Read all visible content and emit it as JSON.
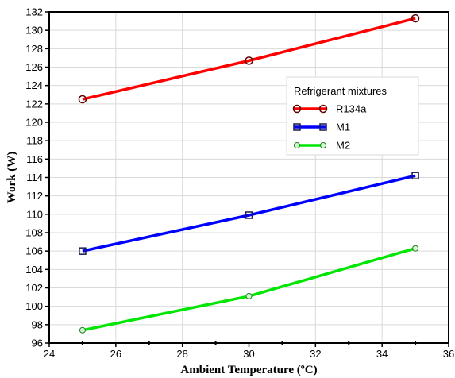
{
  "chart_data": {
    "type": "line",
    "title": "",
    "xlabel": "Ambient Temperature (ºC)",
    "ylabel": "Work  (W)",
    "xlim": [
      24,
      36
    ],
    "ylim": [
      96,
      132
    ],
    "xticks": [
      "24",
      "26",
      "28",
      "30",
      "32",
      "34",
      "36"
    ],
    "yticks": [
      "96",
      "98",
      "100",
      "102",
      "104",
      "106",
      "108",
      "110",
      "112",
      "114",
      "116",
      "118",
      "120",
      "122",
      "124",
      "126",
      "128",
      "130",
      "132"
    ],
    "grid": true,
    "legend": {
      "title": "Refrigerant mixtures",
      "placement": "upper-right-inside"
    },
    "x": [
      25,
      30,
      35
    ],
    "series": [
      {
        "name": "R134a",
        "values": [
          122.5,
          126.7,
          131.3
        ],
        "color": "#ff0000",
        "marker": "circle"
      },
      {
        "name": "M1",
        "values": [
          106.0,
          109.9,
          114.2
        ],
        "color": "#0000ff",
        "marker": "square"
      },
      {
        "name": "M2",
        "values": [
          97.4,
          101.1,
          106.3
        ],
        "color": "#00e600",
        "marker": "circle-small"
      }
    ]
  }
}
